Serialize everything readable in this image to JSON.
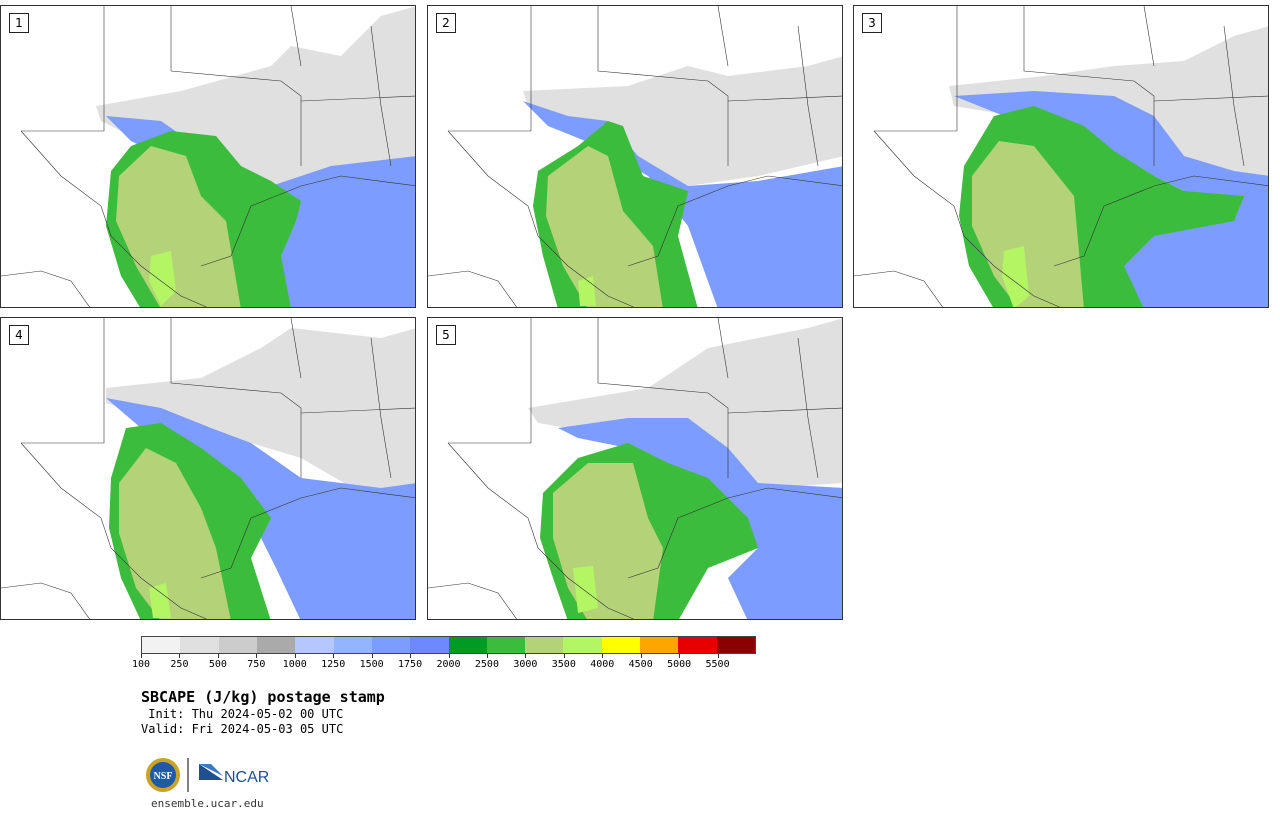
{
  "panels": [
    {
      "label": "1"
    },
    {
      "label": "2"
    },
    {
      "label": "3"
    },
    {
      "label": "4"
    },
    {
      "label": "5"
    }
  ],
  "colorbar": {
    "colors": [
      "#f2f2f2",
      "#e0e0e0",
      "#cccccc",
      "#aaaaaa",
      "#b4c8ff",
      "#94b4ff",
      "#7c9cff",
      "#7088ff",
      "#009a25",
      "#3cbc3c",
      "#b4d278",
      "#b4f564",
      "#ffff00",
      "#ffa500",
      "#e60000",
      "#8b0000"
    ],
    "tick_labels": [
      "100",
      "250",
      "500",
      "750",
      "1000",
      "1250",
      "1500",
      "1750",
      "2000",
      "2500",
      "3000",
      "3500",
      "4000",
      "4500",
      "5000",
      "5500"
    ]
  },
  "title": "SBCAPE (J/kg) postage stamp",
  "init_line": " Init: Thu 2024-05-02 00 UTC",
  "valid_line": "Valid: Fri 2024-05-03 05 UTC",
  "logos": {
    "nsf_text": "NSF",
    "ncar_text": "NCAR"
  },
  "site": "ensemble.ucar.edu"
}
